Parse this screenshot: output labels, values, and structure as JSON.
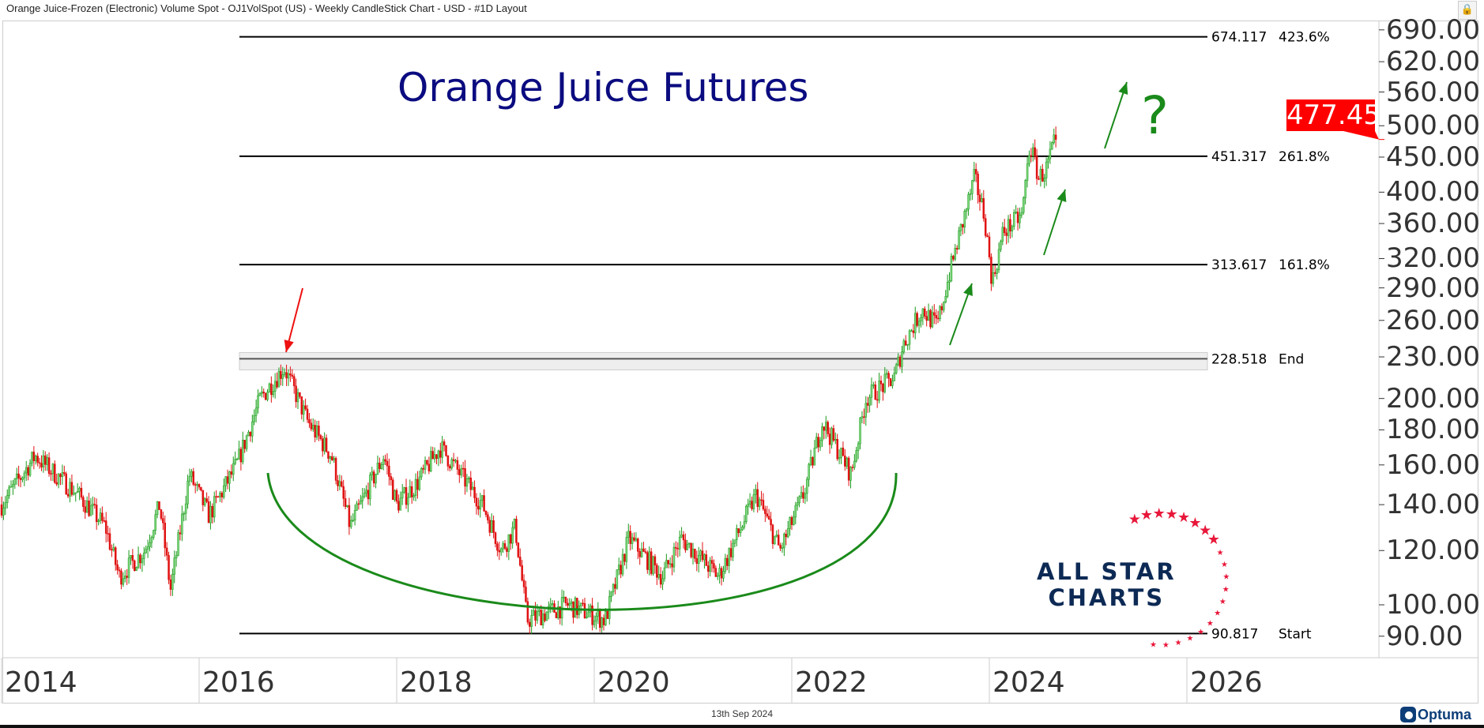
{
  "header": {
    "title": "Orange Juice-Frozen (Electronic) Volume Spot - OJ1VolSpot (US) - Weekly CandleStick Chart - USD - #1D Layout"
  },
  "footer": {
    "date": "13th Sep 2024",
    "brand": "Optuma"
  },
  "annotations": {
    "title": "Orange Juice Futures",
    "question": "?",
    "logo_line1": "ALL STAR",
    "logo_line2": "CHARTS"
  },
  "colors": {
    "up": "#1a9a1a",
    "down": "#e01010",
    "annotation_green": "#1a8a1a",
    "annotation_red": "#ee1111",
    "title": "#0b0b80",
    "last_price_bg": "#ff0000"
  },
  "icons": {
    "lock": "lock-icon",
    "collapse": "chevron-left-icon"
  },
  "chart_data": {
    "type": "candlestick",
    "title": "",
    "y_scale": "log",
    "ylim": [
      86,
      700
    ],
    "xlim": [
      2014.0,
      2027.0
    ],
    "y_ticks": [
      "690.00",
      "620.00",
      "560.00",
      "500.00",
      "450.00",
      "400.00",
      "360.00",
      "320.00",
      "290.00",
      "260.00",
      "230.00",
      "200.00",
      "180.00",
      "160.00",
      "140.00",
      "120.00",
      "100.00",
      "90.00"
    ],
    "x_ticks": [
      "2014",
      "2016",
      "2018",
      "2020",
      "2022",
      "2024",
      "2026"
    ],
    "last_price": "477.45",
    "price_path": {
      "x": [
        2014.0,
        2014.34,
        2014.77,
        2015.05,
        2015.19,
        2015.45,
        2015.6,
        2015.71,
        2015.9,
        2016.1,
        2016.38,
        2016.62,
        2016.86,
        2017.1,
        2017.34,
        2017.53,
        2017.87,
        2018.0,
        2018.2,
        2018.44,
        2018.87,
        2019.06,
        2019.2,
        2019.32,
        2019.73,
        2020.11,
        2020.35,
        2020.69,
        2020.88,
        2021.26,
        2021.64,
        2021.88,
        2022.12,
        2022.31,
        2022.5,
        2022.6,
        2022.75,
        2023.04,
        2023.13,
        2023.32,
        2023.47,
        2023.61,
        2023.85,
        2023.95,
        2024.03,
        2024.14,
        2024.33,
        2024.41,
        2024.5,
        2024.57,
        2024.67
      ],
      "close": [
        140,
        165,
        145,
        130,
        110,
        120,
        140,
        105,
        155,
        135,
        160,
        200,
        222,
        185,
        165,
        130,
        165,
        140,
        150,
        170,
        140,
        120,
        130,
        95,
        100,
        95,
        125,
        110,
        125,
        110,
        145,
        120,
        145,
        185,
        165,
        155,
        200,
        215,
        240,
        270,
        255,
        310,
        420,
        370,
        295,
        350,
        370,
        470,
        420,
        430,
        477
      ]
    },
    "levels": [
      {
        "value": "674.117",
        "label": "423.6%"
      },
      {
        "value": "451.317",
        "label": "261.8%"
      },
      {
        "value": "313.617",
        "label": "161.8%"
      },
      {
        "value": "228.518",
        "label": "End"
      },
      {
        "value": "90.817",
        "label": "Start"
      }
    ]
  }
}
